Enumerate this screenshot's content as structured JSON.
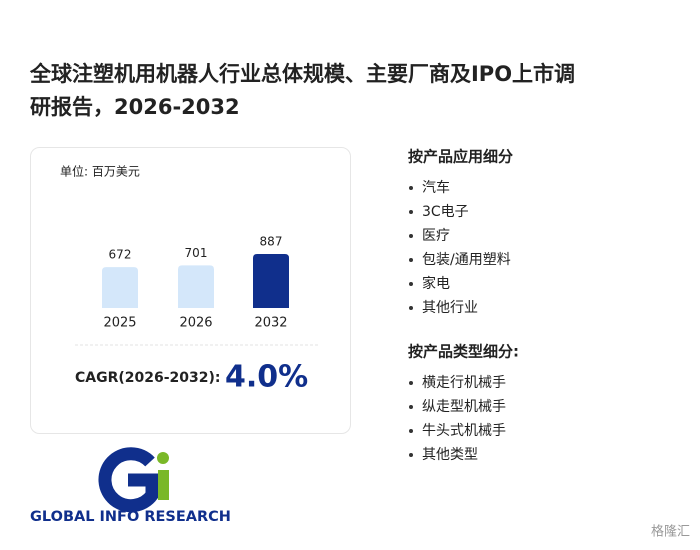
{
  "header": {
    "title_line1": "全球注塑机用机器人行业总体规模、主要厂商及IPO上市调",
    "title_line2": "研报告，2026-2032"
  },
  "chart_data": {
    "type": "bar",
    "unit": "单位: 百万美元",
    "categories": [
      "2025",
      "2026",
      "2032"
    ],
    "values": [
      672,
      701,
      887
    ],
    "colors": [
      "#d4e7fa",
      "#d4e7fa",
      "#102f8c"
    ]
  },
  "cagr": {
    "label": "CAGR(2026-2032):",
    "value": "4.0%"
  },
  "segments": [
    {
      "heading": "按产品应用细分",
      "items": [
        "汽车",
        "3C电子",
        "医疗",
        "包装/通用塑料",
        "家电",
        "其他行业"
      ]
    },
    {
      "heading": "按产品类型细分:",
      "items": [
        "横走行机械手",
        "纵走型机械手",
        "牛头式机械手",
        "其他类型"
      ]
    }
  ],
  "logo": {
    "text": "GLOBAL INFO RESEARCH"
  },
  "source": "格隆汇"
}
